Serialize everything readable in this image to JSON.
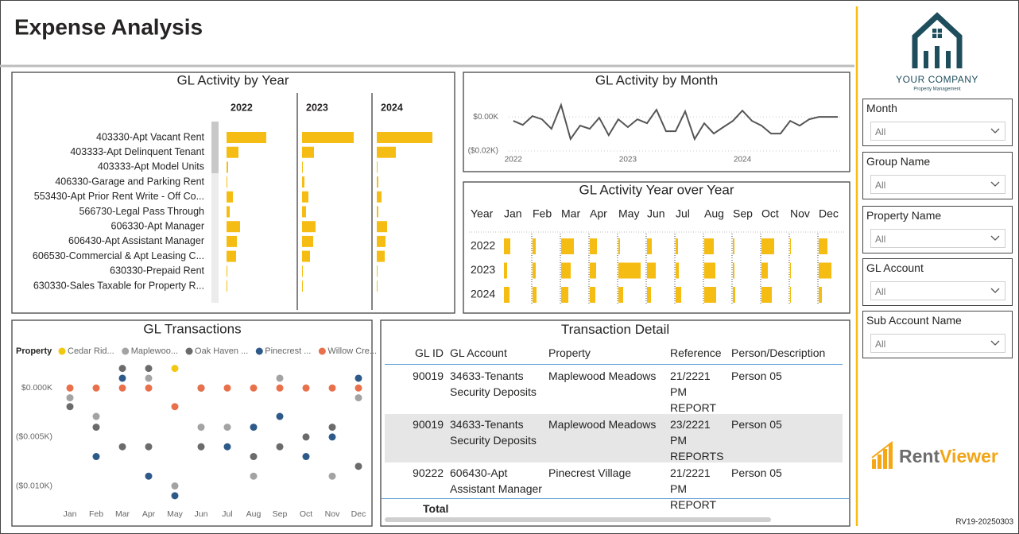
{
  "header": {
    "title": "Expense Analysis"
  },
  "logo": {
    "company": "YOUR COMPANY",
    "tagline": "Property Management"
  },
  "chart_data": [
    {
      "type": "bar",
      "title": "GL Activity by Year",
      "categories": [
        "403330-Apt Vacant Rent",
        "403333-Apt Delinquent Tenant",
        "403333-Apt Model Units",
        "406330-Garage and Parking Rent",
        "553430-Apt Prior Rent Write - Off Co...",
        "566730-Legal Pass Through",
        "606330-Apt Manager",
        "606430-Apt Assistant Manager",
        "606530-Commercial & Apt Leasing C...",
        "630330-Prepaid Rent",
        "630330-Sales Taxable for Property R..."
      ],
      "series": [
        {
          "name": "2022",
          "color": "#f5bd14",
          "values": [
            50,
            15,
            2,
            1,
            8,
            4,
            17,
            13,
            12,
            1,
            1
          ]
        },
        {
          "name": "2023",
          "color": "#f5bd14",
          "values": [
            65,
            15,
            1,
            3,
            8,
            5,
            17,
            14,
            10,
            1,
            1
          ]
        },
        {
          "name": "2024",
          "color": "#f5bd14",
          "values": [
            70,
            24,
            1,
            2,
            6,
            2,
            13,
            11,
            10,
            1,
            1
          ]
        }
      ]
    },
    {
      "type": "line",
      "title": "GL Activity by Month",
      "color": "#555555",
      "x": [
        2022,
        2022.083,
        2022.167,
        2022.25,
        2022.333,
        2022.417,
        2022.5,
        2022.583,
        2022.667,
        2022.75,
        2022.833,
        2022.917,
        2023,
        2023.083,
        2023.167,
        2023.25,
        2023.333,
        2023.417,
        2023.5,
        2023.583,
        2023.667,
        2023.75,
        2023.833,
        2023.917,
        2024,
        2024.083,
        2024.167,
        2024.25,
        2024.333,
        2024.417,
        2024.5,
        2024.583,
        2024.667,
        2024.75,
        2024.833
      ],
      "values": [
        -0.0023,
        -0.0047,
        0.0005,
        -0.0014,
        -0.007,
        0.007,
        -0.013,
        -0.0051,
        -0.007,
        -0.0005,
        -0.0107,
        -0.0014,
        -0.006,
        -0.0014,
        -0.0037,
        0.0042,
        -0.0084,
        -0.0084,
        0.0033,
        -0.013,
        -0.0037,
        -0.0098,
        -0.006,
        -0.0023,
        0.0037,
        -0.0023,
        -0.0051,
        -0.0098,
        -0.0098,
        -0.0023,
        -0.0051,
        -0.0014,
        0,
        0,
        0
      ],
      "xlim": [
        2021.96,
        2024.86
      ],
      "xticks": [
        2022,
        2023,
        2024
      ],
      "ylim": [
        -0.027,
        0.008
      ],
      "yticks": [
        {
          "value": 0,
          "label": "$0.00K"
        },
        {
          "value": -0.02,
          "label": "($0.02K)"
        }
      ],
      "grid": true
    },
    {
      "type": "matrix",
      "title": "GL Activity Year over Year",
      "row_header": "Year",
      "categories": [
        "Jan",
        "Feb",
        "Mar",
        "Apr",
        "May",
        "Jun",
        "Jul",
        "Aug",
        "Sep",
        "Oct",
        "Nov",
        "Dec"
      ],
      "series": [
        {
          "name": "2022",
          "color": "#f5bd14",
          "values": [
            8,
            4,
            16,
            9,
            2,
            6,
            3,
            12,
            2,
            16,
            1,
            11
          ]
        },
        {
          "name": "2023",
          "color": "#f5bd14",
          "values": [
            4,
            4,
            12,
            8,
            28,
            11,
            4,
            14,
            2,
            8,
            1,
            16
          ]
        },
        {
          "name": "2024",
          "color": "#f5bd14",
          "values": [
            7,
            5,
            9,
            7,
            6,
            5,
            7,
            15,
            3,
            13,
            1,
            4
          ]
        }
      ]
    },
    {
      "type": "scatter",
      "title": "GL Transactions",
      "legend_title": "Property",
      "categories": [
        "Jan",
        "Feb",
        "Mar",
        "Apr",
        "May",
        "Jun",
        "Jul",
        "Aug",
        "Sep",
        "Oct",
        "Nov",
        "Dec"
      ],
      "ylim": [
        -0.0115,
        0.0027
      ],
      "yticks": [
        {
          "value": 0,
          "label": "$0.000K"
        },
        {
          "value": -0.005,
          "label": "($0.005K)"
        },
        {
          "value": -0.01,
          "label": "($0.010K)"
        }
      ],
      "series": [
        {
          "name": "Cedar Rid...",
          "color": "#f2c80f",
          "x": [
            "May"
          ],
          "values": [
            0.002
          ]
        },
        {
          "name": "Maplewoo...",
          "color": "#a3a3a3",
          "x": [
            "Jan",
            "Feb",
            "Apr",
            "May",
            "Jun",
            "Jul",
            "Aug",
            "Sep",
            "Nov",
            "Dec"
          ],
          "values": [
            -0.001,
            -0.0029,
            0.001,
            -0.01,
            -0.004,
            -0.004,
            -0.009,
            0.001,
            -0.009,
            -0.001
          ]
        },
        {
          "name": "Oak Haven ...",
          "color": "#6b6b6b",
          "x": [
            "Jan",
            "Feb",
            "Mar",
            "Mar",
            "Apr",
            "Apr",
            "Jun",
            "Aug",
            "Sep",
            "Oct",
            "Nov",
            "Dec"
          ],
          "values": [
            -0.0019,
            -0.004,
            0.002,
            -0.006,
            0.002,
            -0.006,
            -0.006,
            -0.007,
            -0.006,
            -0.005,
            -0.004,
            -0.008
          ]
        },
        {
          "name": "Pinecrest ...",
          "color": "#2e5a8a",
          "x": [
            "Feb",
            "Mar",
            "Apr",
            "May",
            "Jun",
            "Jul",
            "Aug",
            "Sep",
            "Oct",
            "Nov",
            "Dec"
          ],
          "values": [
            -0.007,
            0.001,
            -0.009,
            -0.011,
            0,
            -0.006,
            -0.004,
            -0.0029,
            -0.007,
            -0.005,
            0.001
          ]
        },
        {
          "name": "Willow Cre...",
          "color": "#e8704a",
          "x": [
            "Jan",
            "Feb",
            "Mar",
            "Apr",
            "May",
            "Jun",
            "Jul",
            "Aug",
            "Sep",
            "Oct",
            "Nov",
            "Dec"
          ],
          "values": [
            0,
            0,
            0,
            0,
            -0.0019,
            0,
            0,
            0,
            0,
            0,
            0,
            0
          ]
        }
      ]
    }
  ],
  "table": {
    "title": "Transaction Detail",
    "columns": [
      "GL ID",
      "GL Account",
      "Property",
      "Reference",
      "Person/Description"
    ],
    "rows": [
      [
        "90019",
        "34633-Tenants Security Deposits",
        "Maplewood Meadows",
        "21/2221 PM REPORT",
        "Person 05"
      ],
      [
        "90019",
        "34633-Tenants Security Deposits",
        "Maplewood Meadows",
        "23/2221 PM REPORTS",
        "Person 05"
      ],
      [
        "90222",
        "606430-Apt Assistant Manager",
        "Pinecrest Village",
        "21/2221 PM REPORT",
        "Person 05"
      ]
    ],
    "total_label": "Total"
  },
  "slicers": [
    {
      "label": "Month",
      "value": "All"
    },
    {
      "label": "Group Name",
      "value": "All"
    },
    {
      "label": "Property Name",
      "value": "All"
    },
    {
      "label": "GL Account",
      "value": "All"
    },
    {
      "label": "Sub Account Name",
      "value": "All"
    }
  ],
  "brand": {
    "part1": "Rent",
    "part2": "Viewer"
  },
  "footer": {
    "version": "RV19-20250303"
  }
}
